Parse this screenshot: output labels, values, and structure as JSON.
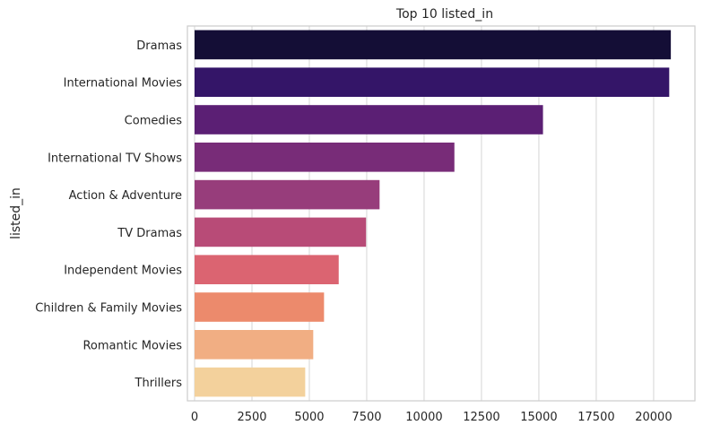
{
  "chart_data": {
    "type": "bar",
    "orientation": "horizontal",
    "title": "Top 10 listed_in",
    "xlabel": "",
    "ylabel": "listed_in",
    "categories": [
      "Dramas",
      "International Movies",
      "Comedies",
      "International TV Shows",
      "Action & Adventure",
      "TV Dramas",
      "Independent Movies",
      "Children & Family Movies",
      "Romantic Movies",
      "Thrillers"
    ],
    "values": [
      20750,
      20680,
      15180,
      11320,
      8060,
      7470,
      6280,
      5640,
      5170,
      4820
    ],
    "xlim": [
      0,
      21800
    ],
    "xticks": [
      0,
      2500,
      5000,
      7500,
      10000,
      12500,
      15000,
      17500,
      20000
    ],
    "xtick_labels": [
      "0",
      "2500",
      "5000",
      "7500",
      "10000",
      "12500",
      "15000",
      "17500",
      "20000"
    ],
    "grid": "vertical",
    "colors": [
      "#140e36",
      "#341568",
      "#5b1f74",
      "#782c78",
      "#973d7b",
      "#b84b77",
      "#db6471",
      "#ec8a6c",
      "#f1ae83",
      "#f3d19c"
    ]
  }
}
